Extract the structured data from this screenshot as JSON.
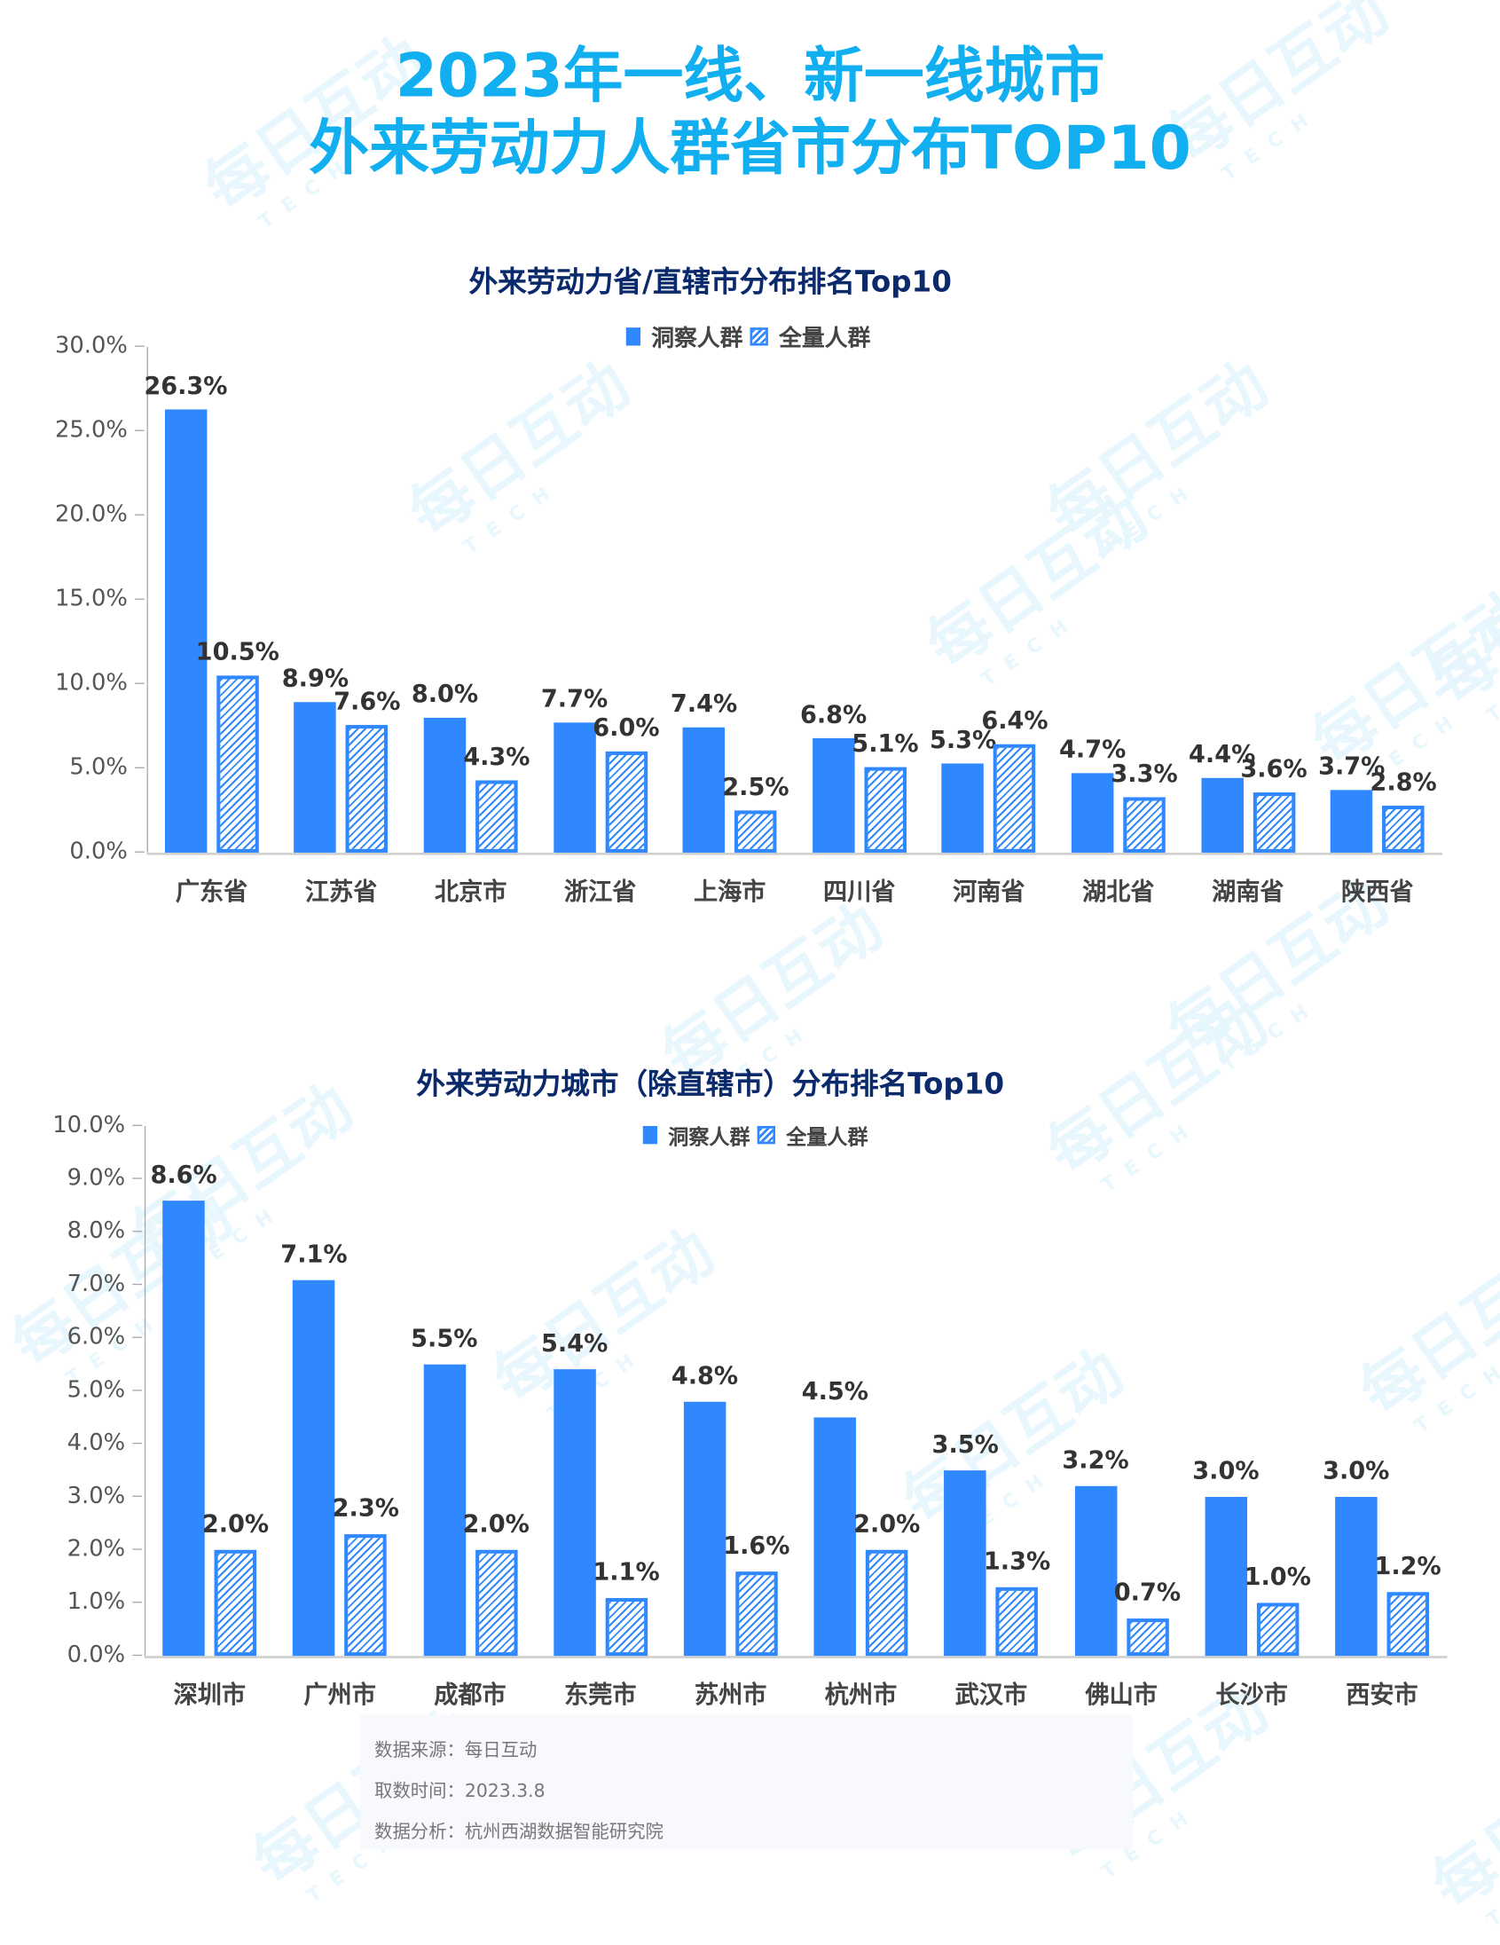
{
  "title_line1": "2023年一线、新一线城市",
  "title_line2": "外来劳动力人群省市分布TOP10",
  "colors": {
    "title": "#12aff0",
    "chart_title": "#0b2a6b",
    "bar": "#2f88ff"
  },
  "watermark": {
    "text": "每日互动",
    "logo_sub": "TECH"
  },
  "chart_data": [
    {
      "type": "bar",
      "title": "外来劳动力省/直辖市分布排名Top10",
      "legend": [
        "洞察人群",
        "全量人群"
      ],
      "categories": [
        "广东省",
        "江苏省",
        "北京市",
        "浙江省",
        "上海市",
        "四川省",
        "河南省",
        "湖北省",
        "湖南省",
        "陕西省"
      ],
      "series": [
        {
          "name": "洞察人群",
          "style": "solid",
          "values": [
            26.3,
            8.9,
            8.0,
            7.7,
            7.4,
            6.8,
            5.3,
            4.7,
            4.4,
            3.7
          ],
          "labels": [
            "26.3%",
            "8.9%",
            "8.0%",
            "7.7%",
            "7.4%",
            "6.8%",
            "5.3%",
            "4.7%",
            "4.4%",
            "3.7%"
          ]
        },
        {
          "name": "全量人群",
          "style": "hatched",
          "values": [
            10.5,
            7.6,
            4.3,
            6.0,
            2.5,
            5.1,
            6.4,
            3.3,
            3.6,
            2.8
          ],
          "labels": [
            "10.5%",
            "7.6%",
            "4.3%",
            "6.0%",
            "2.5%",
            "5.1%",
            "6.4%",
            "3.3%",
            "3.6%",
            "2.8%"
          ]
        }
      ],
      "yticks": [
        "0.0%",
        "5.0%",
        "10.0%",
        "15.0%",
        "20.0%",
        "25.0%",
        "30.0%"
      ],
      "ylim": [
        0,
        30
      ],
      "xlabel": "",
      "ylabel": "",
      "legend_position": "top"
    },
    {
      "type": "bar",
      "title": "外来劳动力城市（除直辖市）分布排名Top10",
      "legend": [
        "洞察人群",
        "全量人群"
      ],
      "categories": [
        "深圳市",
        "广州市",
        "成都市",
        "东莞市",
        "苏州市",
        "杭州市",
        "武汉市",
        "佛山市",
        "长沙市",
        "西安市"
      ],
      "series": [
        {
          "name": "洞察人群",
          "style": "solid",
          "values": [
            8.6,
            7.1,
            5.5,
            5.4,
            4.8,
            4.5,
            3.5,
            3.2,
            3.0,
            3.0
          ],
          "labels": [
            "8.6%",
            "7.1%",
            "5.5%",
            "5.4%",
            "4.8%",
            "4.5%",
            "3.5%",
            "3.2%",
            "3.0%",
            "3.0%"
          ]
        },
        {
          "name": "全量人群",
          "style": "hatched",
          "values": [
            2.0,
            2.3,
            2.0,
            1.1,
            1.6,
            2.0,
            1.3,
            0.7,
            1.0,
            1.2
          ],
          "labels": [
            "2.0%",
            "2.3%",
            "2.0%",
            "1.1%",
            "1.6%",
            "2.0%",
            "1.3%",
            "0.7%",
            "1.0%",
            "1.2%"
          ]
        }
      ],
      "yticks": [
        "0.0%",
        "1.0%",
        "2.0%",
        "3.0%",
        "4.0%",
        "5.0%",
        "6.0%",
        "7.0%",
        "8.0%",
        "9.0%",
        "10.0%"
      ],
      "ylim": [
        0,
        10
      ],
      "xlabel": "",
      "ylabel": "",
      "legend_position": "top"
    }
  ],
  "footer": {
    "source": "数据来源：每日互动",
    "date": "取数时间：2023.3.8",
    "analysis": "数据分析：杭州西湖数据智能研究院"
  }
}
